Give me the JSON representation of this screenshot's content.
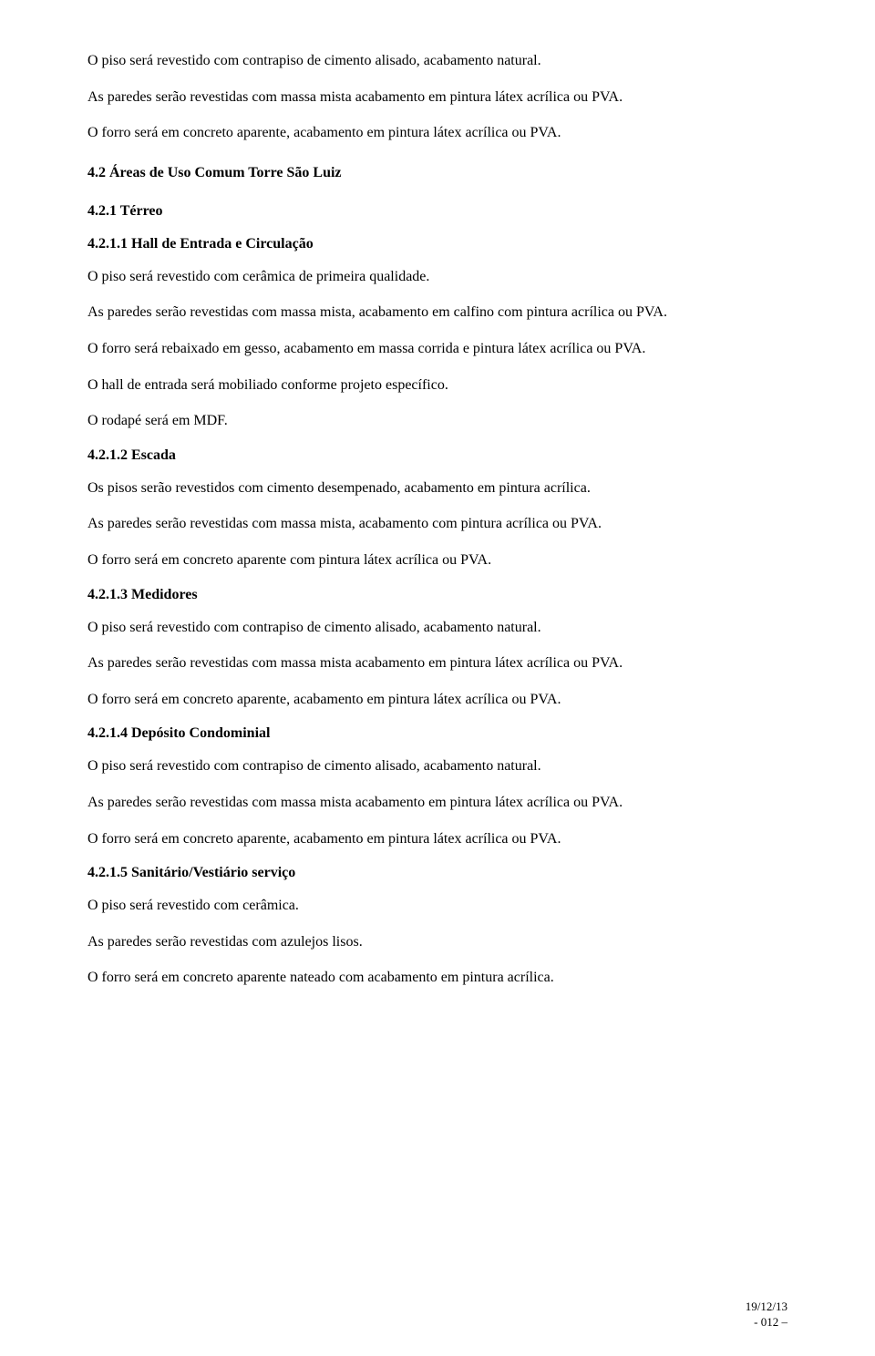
{
  "paragraphs": {
    "p1": "O piso será revestido com contrapiso de cimento alisado, acabamento natural.",
    "p2": "As paredes serão revestidas com massa mista acabamento em pintura látex acrílica ou PVA.",
    "p3": "O forro será em concreto aparente, acabamento em pintura látex acrílica ou PVA.",
    "h1": "4.2 Áreas de Uso Comum Torre São Luiz",
    "h2": "4.2.1 Térreo",
    "h3": "4.2.1.1 Hall de Entrada e Circulação",
    "p4": "O piso será revestido com cerâmica de primeira qualidade.",
    "p5": "As paredes serão revestidas com massa mista, acabamento em calfino com pintura acrílica ou PVA.",
    "p6": "O forro será rebaixado em gesso, acabamento em massa corrida e pintura látex acrílica ou PVA.",
    "p7": "O hall de entrada será mobiliado conforme projeto específico.",
    "p8": "O rodapé será em MDF.",
    "h4": "4.2.1.2 Escada",
    "p9": "Os pisos serão revestidos com cimento desempenado, acabamento em pintura  acrílica.",
    "p10": "As paredes serão revestidas com massa mista, acabamento com pintura acrílica ou PVA.",
    "p11": "O forro será em concreto aparente com pintura látex acrílica ou PVA.",
    "h5": "4.2.1.3 Medidores",
    "p12": "O piso será revestido com contrapiso de cimento alisado, acabamento natural.",
    "p13": "As paredes serão revestidas com massa mista acabamento em pintura látex acrílica ou PVA.",
    "p14": "O forro será em concreto aparente, acabamento em pintura látex acrílica ou PVA.",
    "h6": "4.2.1.4 Depósito Condominial",
    "p15": "O piso será revestido com contrapiso de cimento alisado, acabamento natural.",
    "p16": "As paredes serão revestidas com massa mista acabamento em pintura látex acrílica ou PVA.",
    "p17": "O forro será em concreto aparente, acabamento em pintura látex acrílica ou PVA.",
    "h7": "4.2.1.5 Sanitário/Vestiário serviço",
    "p18": "O piso será revestido com cerâmica.",
    "p19": "As paredes serão revestidas com azulejos lisos.",
    "p20": "O forro será em concreto aparente nateado com acabamento em pintura acrílica."
  },
  "footer": {
    "date": "19/12/13",
    "page": "- 012 –"
  }
}
